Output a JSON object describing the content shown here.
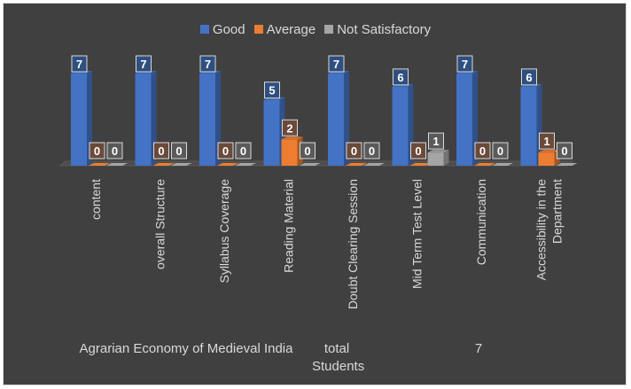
{
  "chart_data": {
    "type": "bar",
    "categories": [
      "content",
      "overall Structure",
      "Syllabus Coverage",
      "Reading Material",
      "Doubt Clearing Session",
      "Mid Term Test Level",
      "Communication",
      "Accessibility in the Department"
    ],
    "series": [
      {
        "name": "Good",
        "values": [
          7,
          7,
          7,
          5,
          7,
          6,
          7,
          6
        ],
        "color": "#4472c4"
      },
      {
        "name": "Average",
        "values": [
          0,
          0,
          0,
          2,
          0,
          0,
          0,
          1
        ],
        "color": "#ed7d31"
      },
      {
        "name": "Not Satisfactory",
        "values": [
          0,
          0,
          0,
          0,
          0,
          1,
          0,
          0
        ],
        "color": "#a5a5a5"
      }
    ],
    "ylim": [
      0,
      7
    ],
    "legend_position": "top",
    "grid": false,
    "background": "#404040"
  },
  "footer": {
    "course": "Agrarian Economy of Medieval India",
    "total_label": "total Students",
    "total_value": "7"
  }
}
